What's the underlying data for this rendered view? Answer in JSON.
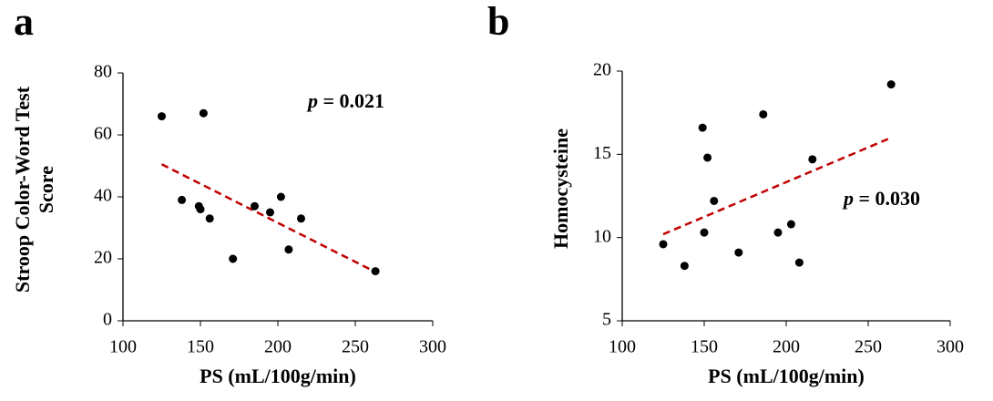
{
  "chart_data": [
    {
      "type": "scatter",
      "panel": "a",
      "xlabel": "PS (mL/100g/min)",
      "ylabel": [
        "Stroop Color-Word Test",
        "Score"
      ],
      "xlim": [
        100,
        300
      ],
      "xticks": [
        100,
        150,
        200,
        250,
        300
      ],
      "ylim": [
        0,
        80
      ],
      "yticks": [
        0,
        20,
        40,
        60,
        80
      ],
      "series": [
        {
          "color": "#000000",
          "x": [
            125,
            152,
            138,
            149,
            150,
            156,
            171,
            185,
            195,
            202,
            207,
            215,
            263
          ],
          "y": [
            66,
            67,
            39,
            37,
            36,
            33,
            20,
            37,
            35,
            40,
            23,
            33,
            16
          ]
        }
      ],
      "trend": {
        "color": "#c00000",
        "x": [
          125,
          264
        ],
        "y": [
          50.5,
          15.5
        ]
      },
      "annotation": {
        "var": "p",
        "text": " = 0.021"
      }
    },
    {
      "type": "scatter",
      "panel": "b",
      "xlabel": "PS (mL/100g/min)",
      "ylabel": [
        "Homocysteine"
      ],
      "xlim": [
        100,
        300
      ],
      "xticks": [
        100,
        150,
        200,
        250,
        300
      ],
      "ylim": [
        5,
        20
      ],
      "yticks": [
        5,
        10,
        15,
        20
      ],
      "series": [
        {
          "color": "#000000",
          "x": [
            125,
            138,
            149,
            150,
            152,
            156,
            171,
            186,
            195,
            203,
            208,
            216,
            264
          ],
          "y": [
            9.6,
            8.3,
            16.6,
            10.3,
            14.8,
            12.2,
            9.1,
            17.4,
            10.3,
            10.8,
            8.5,
            14.7,
            19.2
          ]
        }
      ],
      "trend": {
        "color": "#c00000",
        "x": [
          125,
          264
        ],
        "y": [
          10.2,
          16.0
        ]
      },
      "annotation": {
        "var": "p",
        "text": " = 0.030"
      }
    }
  ]
}
